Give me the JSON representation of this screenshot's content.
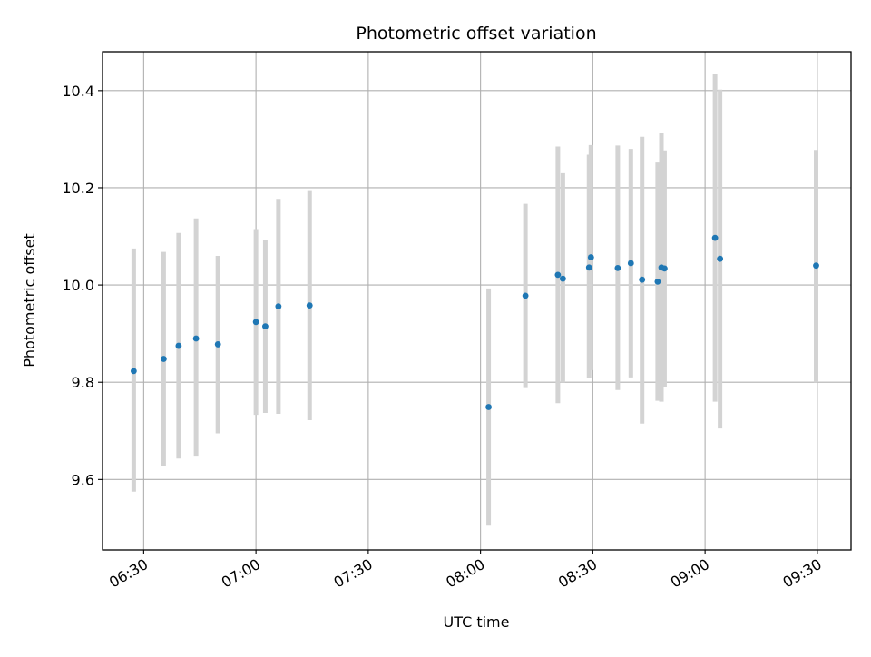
{
  "chart_data": {
    "type": "scatter",
    "title": "Photometric offset variation",
    "xlabel": "UTC time",
    "ylabel": "Photometric offset",
    "grid": true,
    "xlim": [
      "06:19",
      "09:39"
    ],
    "ylim": [
      9.455,
      10.48
    ],
    "xticks": [
      "06:30",
      "07:00",
      "07:30",
      "08:00",
      "08:30",
      "09:00",
      "09:30"
    ],
    "yticks": [
      9.6,
      9.8,
      10.0,
      10.2,
      10.4
    ],
    "ytick_labels": [
      "9.6",
      "9.8",
      "10.0",
      "10.2",
      "10.4"
    ],
    "colors": {
      "point": "#1f77b4",
      "errorbar": "#d3d3d3",
      "grid": "#b0b0b0"
    },
    "points": [
      {
        "x": "06:27:20",
        "y": 9.823,
        "ylo": 9.575,
        "yhi": 10.075
      },
      {
        "x": "06:35:20",
        "y": 9.848,
        "ylo": 9.628,
        "yhi": 10.068
      },
      {
        "x": "06:39:20",
        "y": 9.875,
        "ylo": 9.643,
        "yhi": 10.107
      },
      {
        "x": "06:44:00",
        "y": 9.89,
        "ylo": 9.647,
        "yhi": 10.137
      },
      {
        "x": "06:49:50",
        "y": 9.878,
        "ylo": 9.695,
        "yhi": 10.06
      },
      {
        "x": "07:00:00",
        "y": 9.924,
        "ylo": 9.733,
        "yhi": 10.115
      },
      {
        "x": "07:02:30",
        "y": 9.915,
        "ylo": 9.737,
        "yhi": 10.093
      },
      {
        "x": "07:06:00",
        "y": 9.956,
        "ylo": 9.735,
        "yhi": 10.177
      },
      {
        "x": "07:14:20",
        "y": 9.958,
        "ylo": 9.722,
        "yhi": 10.195
      },
      {
        "x": "08:02:10",
        "y": 9.749,
        "ylo": 9.505,
        "yhi": 9.993
      },
      {
        "x": "08:12:00",
        "y": 9.978,
        "ylo": 9.788,
        "yhi": 10.167
      },
      {
        "x": "08:20:40",
        "y": 10.021,
        "ylo": 9.757,
        "yhi": 10.285
      },
      {
        "x": "08:22:00",
        "y": 10.013,
        "ylo": 9.8,
        "yhi": 10.23
      },
      {
        "x": "08:29:00",
        "y": 10.036,
        "ylo": 9.808,
        "yhi": 10.268
      },
      {
        "x": "08:29:30",
        "y": 10.057,
        "ylo": 9.825,
        "yhi": 10.288
      },
      {
        "x": "08:36:40",
        "y": 10.035,
        "ylo": 9.784,
        "yhi": 10.287
      },
      {
        "x": "08:40:10",
        "y": 10.045,
        "ylo": 9.81,
        "yhi": 10.28
      },
      {
        "x": "08:43:10",
        "y": 10.011,
        "ylo": 9.715,
        "yhi": 10.305
      },
      {
        "x": "08:47:20",
        "y": 10.007,
        "ylo": 9.762,
        "yhi": 10.252
      },
      {
        "x": "08:48:20",
        "y": 10.036,
        "ylo": 9.76,
        "yhi": 10.312
      },
      {
        "x": "08:49:10",
        "y": 10.034,
        "ylo": 9.791,
        "yhi": 10.277
      },
      {
        "x": "09:02:40",
        "y": 10.097,
        "ylo": 9.76,
        "yhi": 10.435
      },
      {
        "x": "09:04:00",
        "y": 10.054,
        "ylo": 9.705,
        "yhi": 10.402
      },
      {
        "x": "09:29:40",
        "y": 10.04,
        "ylo": 9.8,
        "yhi": 10.278
      }
    ]
  }
}
